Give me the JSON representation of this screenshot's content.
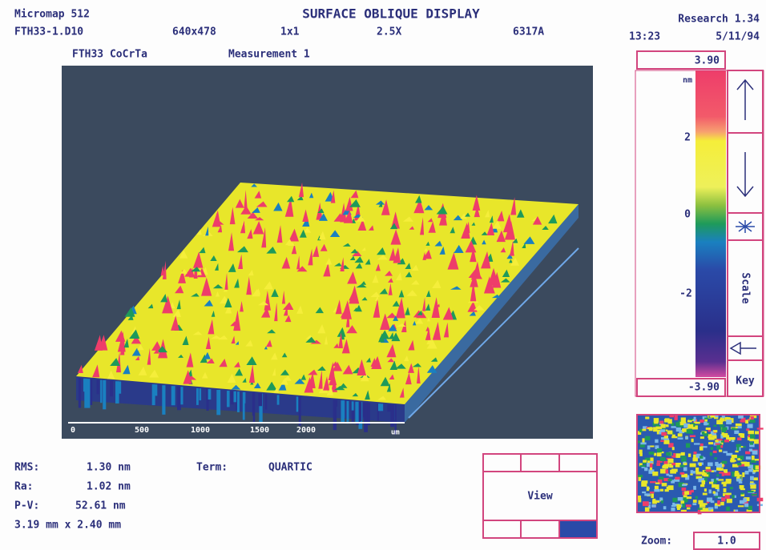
{
  "header": {
    "app": "Micromap 512",
    "file": "FTH33-1.D10",
    "resolution": "640x478",
    "binning": "1x1",
    "objective": "2.5X",
    "code": "6317A",
    "title": "SURFACE OBLIQUE DISPLAY",
    "version": "Research 1.34",
    "time": "13:23",
    "date": "5/11/94"
  },
  "subtitle": {
    "sample": "FTH33 CoCrTa",
    "measurement": "Measurement 1"
  },
  "x_axis": {
    "labels": [
      "0",
      "500",
      "1000",
      "1500",
      "2000"
    ],
    "unit": "um"
  },
  "colorbar": {
    "max": "3.90",
    "unit": "nm",
    "ticks": [
      "2",
      "0",
      "-2"
    ],
    "min": "-3.90",
    "scale_button": "Scale",
    "key_button": "Key"
  },
  "stats": {
    "rms_label": "RMS:",
    "rms": "1.30 nm",
    "ra_label": "Ra:",
    "ra": "1.02 nm",
    "pv_label": "P-V:",
    "pv": "52.61 nm",
    "size": "3.19 mm x 2.40 mm",
    "term_label": "Term:",
    "term": "QUARTIC"
  },
  "view": {
    "button": "View"
  },
  "zoom": {
    "label": "Zoom:",
    "value": "1.0"
  }
}
